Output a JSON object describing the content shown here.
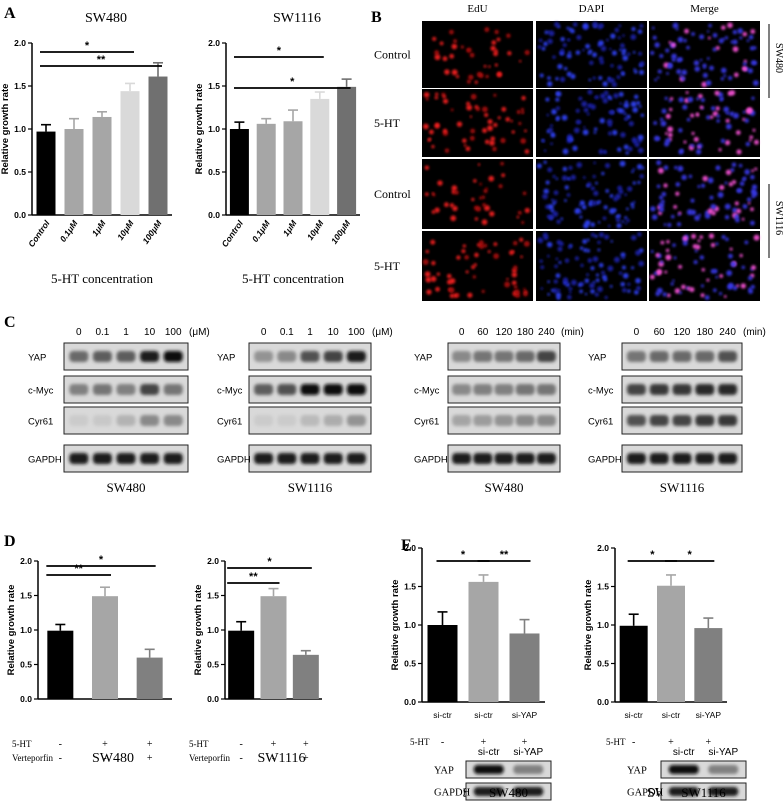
{
  "panel_letters": {
    "A": "A",
    "B": "B",
    "C": "C",
    "D": "D",
    "E": "E"
  },
  "chart_data": [
    {
      "id": "A-SW480",
      "type": "bar",
      "title": "SW480",
      "xlabel": "5-HT concentration",
      "ylabel": "Relative growth rate",
      "categories": [
        "Control",
        "0.1μM",
        "1μM",
        "10μM",
        "100μM"
      ],
      "values": [
        0.97,
        1.0,
        1.14,
        1.44,
        1.61
      ],
      "errors": [
        0.08,
        0.12,
        0.06,
        0.09,
        0.16
      ],
      "colors": [
        "#000000",
        "#a6a6a6",
        "#a6a6a6",
        "#d9d9d9",
        "#707070"
      ],
      "ylim": [
        0,
        2.0
      ],
      "yticks": [
        "0.0",
        "0.5",
        "1.0",
        "1.5",
        "2.0"
      ],
      "sig": [
        {
          "from": 0,
          "to": 3,
          "label": "*"
        },
        {
          "from": 0,
          "to": 4,
          "label": "**"
        }
      ]
    },
    {
      "id": "A-SW1116",
      "type": "bar",
      "title": "SW1116",
      "xlabel": "5-HT concentration",
      "ylabel": "Relative growth rate",
      "categories": [
        "Control",
        "0.1μM",
        "1μM",
        "10μM",
        "100μM"
      ],
      "values": [
        1.0,
        1.06,
        1.09,
        1.35,
        1.49
      ],
      "errors": [
        0.08,
        0.06,
        0.13,
        0.08,
        0.09
      ],
      "colors": [
        "#000000",
        "#a6a6a6",
        "#a6a6a6",
        "#d9d9d9",
        "#707070"
      ],
      "ylim": [
        0,
        2.0
      ],
      "yticks": [
        "0.0",
        "0.5",
        "1.0",
        "1.5",
        "2.0"
      ],
      "sig": [
        {
          "from": 0,
          "to": 3,
          "label": "*"
        },
        {
          "from": 0,
          "to": 4,
          "label": "*"
        }
      ]
    },
    {
      "id": "D-SW480",
      "type": "bar",
      "title": "SW480",
      "xlabel": "",
      "ylabel": "Relative growth rate",
      "categories": [
        "",
        "",
        ""
      ],
      "values": [
        0.99,
        1.49,
        0.6
      ],
      "errors": [
        0.09,
        0.13,
        0.12
      ],
      "colors": [
        "#000000",
        "#a6a6a6",
        "#808080"
      ],
      "ylim": [
        0,
        2.0
      ],
      "yticks": [
        "0.0",
        "0.5",
        "1.0",
        "1.5",
        "2.0"
      ],
      "rows": [
        {
          "label": "5-HT",
          "marks": [
            "-",
            "+",
            "+"
          ]
        },
        {
          "label": "Verteporfin",
          "marks": [
            "-",
            "-",
            "+"
          ]
        }
      ],
      "sig": [
        {
          "from": 0,
          "to": 1,
          "label": "**"
        },
        {
          "from": 0,
          "to": 2,
          "label": "*"
        }
      ]
    },
    {
      "id": "D-SW1116",
      "type": "bar",
      "title": "SW1116",
      "xlabel": "",
      "ylabel": "Relative growth rate",
      "categories": [
        "",
        "",
        ""
      ],
      "values": [
        0.99,
        1.49,
        0.64
      ],
      "errors": [
        0.13,
        0.11,
        0.06
      ],
      "colors": [
        "#000000",
        "#a6a6a6",
        "#808080"
      ],
      "ylim": [
        0,
        2.0
      ],
      "yticks": [
        "0.0",
        "0.5",
        "1.0",
        "1.5",
        "2.0"
      ],
      "rows": [
        {
          "label": "5-HT",
          "marks": [
            "-",
            "+",
            "+"
          ]
        },
        {
          "label": "Verteporfin",
          "marks": [
            "-",
            "-",
            "+"
          ]
        }
      ],
      "sig": [
        {
          "from": 0,
          "to": 1,
          "label": "**"
        },
        {
          "from": 0,
          "to": 2,
          "label": "*"
        }
      ]
    },
    {
      "id": "E-SW480",
      "type": "bar",
      "title": "SW480",
      "xlabel": "",
      "ylabel": "Relative growth rate",
      "categories": [
        "si-ctr",
        "si-ctr",
        "si-YAP"
      ],
      "values": [
        1.0,
        1.56,
        0.89
      ],
      "errors": [
        0.17,
        0.09,
        0.18
      ],
      "colors": [
        "#000000",
        "#a6a6a6",
        "#808080"
      ],
      "ylim": [
        0,
        2.0
      ],
      "yticks": [
        "0.0",
        "0.5",
        "1.0",
        "1.5",
        "2.0"
      ],
      "rows": [
        {
          "label": "5-HT",
          "marks": [
            "-",
            "+",
            "+"
          ]
        }
      ],
      "sig": [
        {
          "from": 0,
          "to": 1,
          "label": "*"
        },
        {
          "from": 1,
          "to": 2,
          "label": "**"
        }
      ]
    },
    {
      "id": "E-SW1116",
      "type": "bar",
      "title": "SW1116",
      "xlabel": "",
      "ylabel": "Relative growth rate",
      "categories": [
        "si-ctr",
        "si-ctr",
        "si-YAP"
      ],
      "values": [
        0.99,
        1.51,
        0.96
      ],
      "errors": [
        0.15,
        0.14,
        0.13
      ],
      "colors": [
        "#000000",
        "#a6a6a6",
        "#808080"
      ],
      "ylim": [
        0,
        2.0
      ],
      "yticks": [
        "0.0",
        "0.5",
        "1.0",
        "1.5",
        "2.0"
      ],
      "rows": [
        {
          "label": "5-HT",
          "marks": [
            "-",
            "+",
            "+"
          ]
        }
      ],
      "sig": [
        {
          "from": 0,
          "to": 1,
          "label": "*"
        },
        {
          "from": 1,
          "to": 2,
          "label": "*"
        }
      ]
    }
  ],
  "microscopy": {
    "columns": [
      "EdU",
      "DAPI",
      "Merge"
    ],
    "rows": [
      "Control",
      "5-HT",
      "Control",
      "5-HT"
    ],
    "cell_lines": [
      "SW480",
      "SW1116"
    ]
  },
  "western_c": [
    {
      "cell_line": "SW480",
      "lanes": [
        "0",
        "0.1",
        "1",
        "10",
        "100"
      ],
      "unit": "(μM)",
      "bands": [
        {
          "label": "YAP",
          "intensity": [
            0.65,
            0.7,
            0.7,
            0.95,
            1.0
          ]
        },
        {
          "label": "c-Myc",
          "intensity": [
            0.55,
            0.6,
            0.55,
            0.8,
            0.6
          ]
        },
        {
          "label": "Cyr61",
          "intensity": [
            0.05,
            0.08,
            0.25,
            0.5,
            0.5
          ]
        },
        {
          "label": "GAPDH",
          "intensity": [
            0.95,
            0.95,
            0.95,
            0.95,
            0.95
          ]
        }
      ]
    },
    {
      "cell_line": "SW1116",
      "lanes": [
        "0",
        "0.1",
        "1",
        "10",
        "100"
      ],
      "unit": "(μM)",
      "bands": [
        {
          "label": "YAP",
          "intensity": [
            0.45,
            0.5,
            0.75,
            0.8,
            0.95
          ]
        },
        {
          "label": "c-Myc",
          "intensity": [
            0.7,
            0.75,
            1.0,
            1.0,
            1.0
          ]
        },
        {
          "label": "Cyr61",
          "intensity": [
            0.05,
            0.05,
            0.2,
            0.3,
            0.45
          ]
        },
        {
          "label": "GAPDH",
          "intensity": [
            0.95,
            0.95,
            0.95,
            0.95,
            0.95
          ]
        }
      ]
    },
    {
      "cell_line": "SW480",
      "lanes": [
        "0",
        "60",
        "120",
        "180",
        "240"
      ],
      "unit": "(min)",
      "bands": [
        {
          "label": "YAP",
          "intensity": [
            0.5,
            0.6,
            0.6,
            0.65,
            0.8
          ]
        },
        {
          "label": "c-Myc",
          "intensity": [
            0.5,
            0.55,
            0.55,
            0.6,
            0.6
          ]
        },
        {
          "label": "Cyr61",
          "intensity": [
            0.35,
            0.4,
            0.45,
            0.5,
            0.5
          ]
        },
        {
          "label": "GAPDH",
          "intensity": [
            0.95,
            0.95,
            0.95,
            0.95,
            0.95
          ]
        }
      ]
    },
    {
      "cell_line": "SW1116",
      "lanes": [
        "0",
        "60",
        "120",
        "180",
        "240"
      ],
      "unit": "(min)",
      "bands": [
        {
          "label": "YAP",
          "intensity": [
            0.6,
            0.65,
            0.65,
            0.65,
            0.75
          ]
        },
        {
          "label": "c-Myc",
          "intensity": [
            0.8,
            0.85,
            0.85,
            0.9,
            0.9
          ]
        },
        {
          "label": "Cyr61",
          "intensity": [
            0.75,
            0.8,
            0.8,
            0.85,
            0.85
          ]
        },
        {
          "label": "GAPDH",
          "intensity": [
            0.95,
            0.95,
            0.95,
            0.95,
            0.95
          ]
        }
      ]
    }
  ],
  "western_e": [
    {
      "cell_line": "SW480",
      "lanes": [
        "si-ctr",
        "si-YAP"
      ],
      "bands": [
        {
          "label": "YAP",
          "intensity": [
            1.0,
            0.55
          ]
        },
        {
          "label": "GAPDH",
          "intensity": [
            0.95,
            0.95
          ]
        }
      ]
    },
    {
      "cell_line": "SW1116",
      "lanes": [
        "si-ctr",
        "si-YAP"
      ],
      "bands": [
        {
          "label": "YAP",
          "intensity": [
            1.0,
            0.55
          ]
        },
        {
          "label": "GAPDH",
          "intensity": [
            0.95,
            0.95
          ]
        }
      ]
    }
  ]
}
